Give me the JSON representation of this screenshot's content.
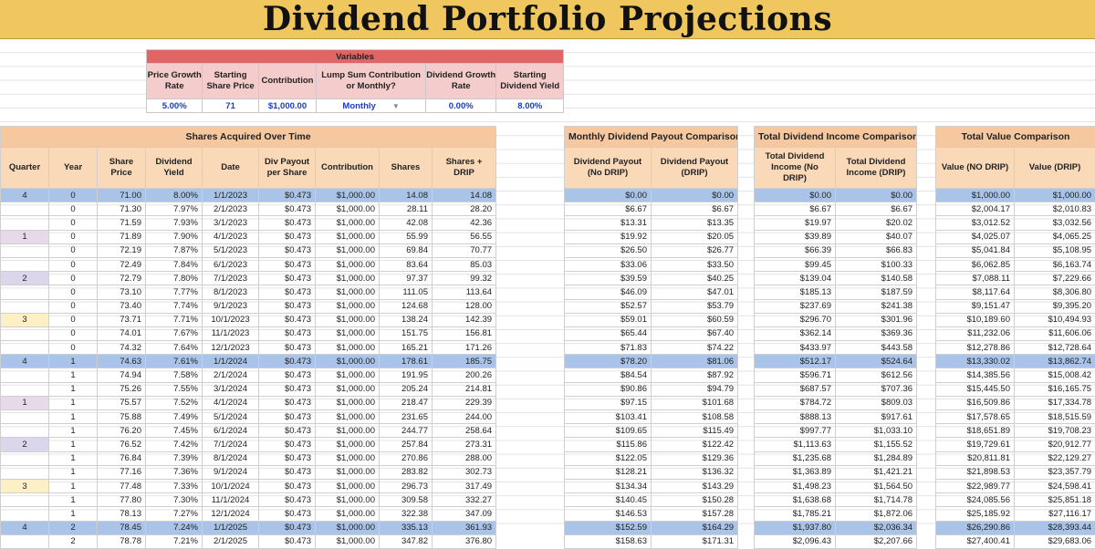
{
  "title": "Dividend Portfolio Projections",
  "variables": {
    "header": "Variables",
    "labels": [
      "Price Growth Rate",
      "Starting Share Price",
      "Contribution",
      "Lump Sum Contribution or Monthly?",
      "Dividend Growth Rate",
      "Starting Dividend Yield"
    ],
    "values": [
      "5.00%",
      "71",
      "$1,000.00",
      "Monthly",
      "0.00%",
      "8.00%"
    ]
  },
  "shares_table": {
    "title": "Shares Acquired Over Time",
    "columns": [
      "Quarter",
      "Year",
      "Share Price",
      "Dividend Yield",
      "Date",
      "Div Payout per Share",
      "Contribution",
      "Shares",
      "Shares + DRIP"
    ]
  },
  "monthly_table": {
    "title": "Monthly Dividend Payout Comparison",
    "columns": [
      "Dividend Payout (No DRIP)",
      "Dividend Payout (DRIP)"
    ]
  },
  "income_table": {
    "title": "Total Dividend Income Comparison",
    "columns": [
      "Total Dividend Income (No DRIP)",
      "Total Dividend Income (DRIP)"
    ]
  },
  "value_table": {
    "title": "Total Value Comparison",
    "columns": [
      "Value (NO DRIP)",
      "Value (DRIP)"
    ]
  },
  "rows": [
    {
      "quarter": "4",
      "year": "0",
      "price": "71.00",
      "yield": "8.00%",
      "date": "1/1/2023",
      "div": "$0.473",
      "contrib": "$1,000.00",
      "shares": "14.08",
      "drip": "14.08",
      "pay_no": "$0.00",
      "pay_drip": "$0.00",
      "inc_no": "$0.00",
      "inc_drip": "$0.00",
      "val_no": "$1,000.00",
      "val_drip": "$1,000.00",
      "hl": true
    },
    {
      "quarter": "",
      "year": "0",
      "price": "71.30",
      "yield": "7.97%",
      "date": "2/1/2023",
      "div": "$0.473",
      "contrib": "$1,000.00",
      "shares": "28.11",
      "drip": "28.20",
      "pay_no": "$6.67",
      "pay_drip": "$6.67",
      "inc_no": "$6.67",
      "inc_drip": "$6.67",
      "val_no": "$2,004.17",
      "val_drip": "$2,010.83",
      "hl": false
    },
    {
      "quarter": "",
      "year": "0",
      "price": "71.59",
      "yield": "7.93%",
      "date": "3/1/2023",
      "div": "$0.473",
      "contrib": "$1,000.00",
      "shares": "42.08",
      "drip": "42.36",
      "pay_no": "$13.31",
      "pay_drip": "$13.35",
      "inc_no": "$19.97",
      "inc_drip": "$20.02",
      "val_no": "$3,012.52",
      "val_drip": "$3,032.56",
      "hl": false
    },
    {
      "quarter": "1",
      "year": "0",
      "price": "71.89",
      "yield": "7.90%",
      "date": "4/1/2023",
      "div": "$0.473",
      "contrib": "$1,000.00",
      "shares": "55.99",
      "drip": "56.55",
      "pay_no": "$19.92",
      "pay_drip": "$20.05",
      "inc_no": "$39.89",
      "inc_drip": "$40.07",
      "val_no": "$4,025.07",
      "val_drip": "$4,065.25",
      "hl": false
    },
    {
      "quarter": "",
      "year": "0",
      "price": "72.19",
      "yield": "7.87%",
      "date": "5/1/2023",
      "div": "$0.473",
      "contrib": "$1,000.00",
      "shares": "69.84",
      "drip": "70.77",
      "pay_no": "$26.50",
      "pay_drip": "$26.77",
      "inc_no": "$66.39",
      "inc_drip": "$66.83",
      "val_no": "$5,041.84",
      "val_drip": "$5,108.95",
      "hl": false
    },
    {
      "quarter": "",
      "year": "0",
      "price": "72.49",
      "yield": "7.84%",
      "date": "6/1/2023",
      "div": "$0.473",
      "contrib": "$1,000.00",
      "shares": "83.64",
      "drip": "85.03",
      "pay_no": "$33.06",
      "pay_drip": "$33.50",
      "inc_no": "$99.45",
      "inc_drip": "$100.33",
      "val_no": "$6,062.85",
      "val_drip": "$6,163.74",
      "hl": false
    },
    {
      "quarter": "2",
      "year": "0",
      "price": "72.79",
      "yield": "7.80%",
      "date": "7/1/2023",
      "div": "$0.473",
      "contrib": "$1,000.00",
      "shares": "97.37",
      "drip": "99.32",
      "pay_no": "$39.59",
      "pay_drip": "$40.25",
      "inc_no": "$139.04",
      "inc_drip": "$140.58",
      "val_no": "$7,088.11",
      "val_drip": "$7,229.66",
      "hl": false
    },
    {
      "quarter": "",
      "year": "0",
      "price": "73.10",
      "yield": "7.77%",
      "date": "8/1/2023",
      "div": "$0.473",
      "contrib": "$1,000.00",
      "shares": "111.05",
      "drip": "113.64",
      "pay_no": "$46.09",
      "pay_drip": "$47.01",
      "inc_no": "$185.13",
      "inc_drip": "$187.59",
      "val_no": "$8,117.64",
      "val_drip": "$8,306.80",
      "hl": false
    },
    {
      "quarter": "",
      "year": "0",
      "price": "73.40",
      "yield": "7.74%",
      "date": "9/1/2023",
      "div": "$0.473",
      "contrib": "$1,000.00",
      "shares": "124.68",
      "drip": "128.00",
      "pay_no": "$52.57",
      "pay_drip": "$53.79",
      "inc_no": "$237.69",
      "inc_drip": "$241.38",
      "val_no": "$9,151.47",
      "val_drip": "$9,395.20",
      "hl": false
    },
    {
      "quarter": "3",
      "year": "0",
      "price": "73.71",
      "yield": "7.71%",
      "date": "10/1/2023",
      "div": "$0.473",
      "contrib": "$1,000.00",
      "shares": "138.24",
      "drip": "142.39",
      "pay_no": "$59.01",
      "pay_drip": "$60.59",
      "inc_no": "$296.70",
      "inc_drip": "$301.96",
      "val_no": "$10,189.60",
      "val_drip": "$10,494.93",
      "hl": false
    },
    {
      "quarter": "",
      "year": "0",
      "price": "74.01",
      "yield": "7.67%",
      "date": "11/1/2023",
      "div": "$0.473",
      "contrib": "$1,000.00",
      "shares": "151.75",
      "drip": "156.81",
      "pay_no": "$65.44",
      "pay_drip": "$67.40",
      "inc_no": "$362.14",
      "inc_drip": "$369.36",
      "val_no": "$11,232.06",
      "val_drip": "$11,606.06",
      "hl": false
    },
    {
      "quarter": "",
      "year": "0",
      "price": "74.32",
      "yield": "7.64%",
      "date": "12/1/2023",
      "div": "$0.473",
      "contrib": "$1,000.00",
      "shares": "165.21",
      "drip": "171.26",
      "pay_no": "$71.83",
      "pay_drip": "$74.22",
      "inc_no": "$433.97",
      "inc_drip": "$443.58",
      "val_no": "$12,278.86",
      "val_drip": "$12,728.64",
      "hl": false
    },
    {
      "quarter": "4",
      "year": "1",
      "price": "74.63",
      "yield": "7.61%",
      "date": "1/1/2024",
      "div": "$0.473",
      "contrib": "$1,000.00",
      "shares": "178.61",
      "drip": "185.75",
      "pay_no": "$78.20",
      "pay_drip": "$81.06",
      "inc_no": "$512.17",
      "inc_drip": "$524.64",
      "val_no": "$13,330.02",
      "val_drip": "$13,862.74",
      "hl": true
    },
    {
      "quarter": "",
      "year": "1",
      "price": "74.94",
      "yield": "7.58%",
      "date": "2/1/2024",
      "div": "$0.473",
      "contrib": "$1,000.00",
      "shares": "191.95",
      "drip": "200.26",
      "pay_no": "$84.54",
      "pay_drip": "$87.92",
      "inc_no": "$596.71",
      "inc_drip": "$612.56",
      "val_no": "$14,385.56",
      "val_drip": "$15,008.42",
      "hl": false
    },
    {
      "quarter": "",
      "year": "1",
      "price": "75.26",
      "yield": "7.55%",
      "date": "3/1/2024",
      "div": "$0.473",
      "contrib": "$1,000.00",
      "shares": "205.24",
      "drip": "214.81",
      "pay_no": "$90.86",
      "pay_drip": "$94.79",
      "inc_no": "$687.57",
      "inc_drip": "$707.36",
      "val_no": "$15,445.50",
      "val_drip": "$16,165.75",
      "hl": false
    },
    {
      "quarter": "1",
      "year": "1",
      "price": "75.57",
      "yield": "7.52%",
      "date": "4/1/2024",
      "div": "$0.473",
      "contrib": "$1,000.00",
      "shares": "218.47",
      "drip": "229.39",
      "pay_no": "$97.15",
      "pay_drip": "$101.68",
      "inc_no": "$784.72",
      "inc_drip": "$809.03",
      "val_no": "$16,509.86",
      "val_drip": "$17,334.78",
      "hl": false
    },
    {
      "quarter": "",
      "year": "1",
      "price": "75.88",
      "yield": "7.49%",
      "date": "5/1/2024",
      "div": "$0.473",
      "contrib": "$1,000.00",
      "shares": "231.65",
      "drip": "244.00",
      "pay_no": "$103.41",
      "pay_drip": "$108.58",
      "inc_no": "$888.13",
      "inc_drip": "$917.61",
      "val_no": "$17,578.65",
      "val_drip": "$18,515.59",
      "hl": false
    },
    {
      "quarter": "",
      "year": "1",
      "price": "76.20",
      "yield": "7.45%",
      "date": "6/1/2024",
      "div": "$0.473",
      "contrib": "$1,000.00",
      "shares": "244.77",
      "drip": "258.64",
      "pay_no": "$109.65",
      "pay_drip": "$115.49",
      "inc_no": "$997.77",
      "inc_drip": "$1,033.10",
      "val_no": "$18,651.89",
      "val_drip": "$19,708.23",
      "hl": false
    },
    {
      "quarter": "2",
      "year": "1",
      "price": "76.52",
      "yield": "7.42%",
      "date": "7/1/2024",
      "div": "$0.473",
      "contrib": "$1,000.00",
      "shares": "257.84",
      "drip": "273.31",
      "pay_no": "$115.86",
      "pay_drip": "$122.42",
      "inc_no": "$1,113.63",
      "inc_drip": "$1,155.52",
      "val_no": "$19,729.61",
      "val_drip": "$20,912.77",
      "hl": false
    },
    {
      "quarter": "",
      "year": "1",
      "price": "76.84",
      "yield": "7.39%",
      "date": "8/1/2024",
      "div": "$0.473",
      "contrib": "$1,000.00",
      "shares": "270.86",
      "drip": "288.00",
      "pay_no": "$122.05",
      "pay_drip": "$129.36",
      "inc_no": "$1,235.68",
      "inc_drip": "$1,284.89",
      "val_no": "$20,811.81",
      "val_drip": "$22,129.27",
      "hl": false
    },
    {
      "quarter": "",
      "year": "1",
      "price": "77.16",
      "yield": "7.36%",
      "date": "9/1/2024",
      "div": "$0.473",
      "contrib": "$1,000.00",
      "shares": "283.82",
      "drip": "302.73",
      "pay_no": "$128.21",
      "pay_drip": "$136.32",
      "inc_no": "$1,363.89",
      "inc_drip": "$1,421.21",
      "val_no": "$21,898.53",
      "val_drip": "$23,357.79",
      "hl": false
    },
    {
      "quarter": "3",
      "year": "1",
      "price": "77.48",
      "yield": "7.33%",
      "date": "10/1/2024",
      "div": "$0.473",
      "contrib": "$1,000.00",
      "shares": "296.73",
      "drip": "317.49",
      "pay_no": "$134.34",
      "pay_drip": "$143.29",
      "inc_no": "$1,498.23",
      "inc_drip": "$1,564.50",
      "val_no": "$22,989.77",
      "val_drip": "$24,598.41",
      "hl": false
    },
    {
      "quarter": "",
      "year": "1",
      "price": "77.80",
      "yield": "7.30%",
      "date": "11/1/2024",
      "div": "$0.473",
      "contrib": "$1,000.00",
      "shares": "309.58",
      "drip": "332.27",
      "pay_no": "$140.45",
      "pay_drip": "$150.28",
      "inc_no": "$1,638.68",
      "inc_drip": "$1,714.78",
      "val_no": "$24,085.56",
      "val_drip": "$25,851.18",
      "hl": false
    },
    {
      "quarter": "",
      "year": "1",
      "price": "78.13",
      "yield": "7.27%",
      "date": "12/1/2024",
      "div": "$0.473",
      "contrib": "$1,000.00",
      "shares": "322.38",
      "drip": "347.09",
      "pay_no": "$146.53",
      "pay_drip": "$157.28",
      "inc_no": "$1,785.21",
      "inc_drip": "$1,872.06",
      "val_no": "$25,185.92",
      "val_drip": "$27,116.17",
      "hl": false
    },
    {
      "quarter": "4",
      "year": "2",
      "price": "78.45",
      "yield": "7.24%",
      "date": "1/1/2025",
      "div": "$0.473",
      "contrib": "$1,000.00",
      "shares": "335.13",
      "drip": "361.93",
      "pay_no": "$152.59",
      "pay_drip": "$164.29",
      "inc_no": "$1,937.80",
      "inc_drip": "$2,036.34",
      "val_no": "$26,290.86",
      "val_drip": "$28,393.44",
      "hl": true
    },
    {
      "quarter": "",
      "year": "2",
      "price": "78.78",
      "yield": "7.21%",
      "date": "2/1/2025",
      "div": "$0.473",
      "contrib": "$1,000.00",
      "shares": "347.82",
      "drip": "376.80",
      "pay_no": "$158.63",
      "pay_drip": "$171.31",
      "inc_no": "$2,096.43",
      "inc_drip": "$2,207.66",
      "val_no": "$27,400.41",
      "val_drip": "$29,683.06",
      "hl": false
    }
  ]
}
